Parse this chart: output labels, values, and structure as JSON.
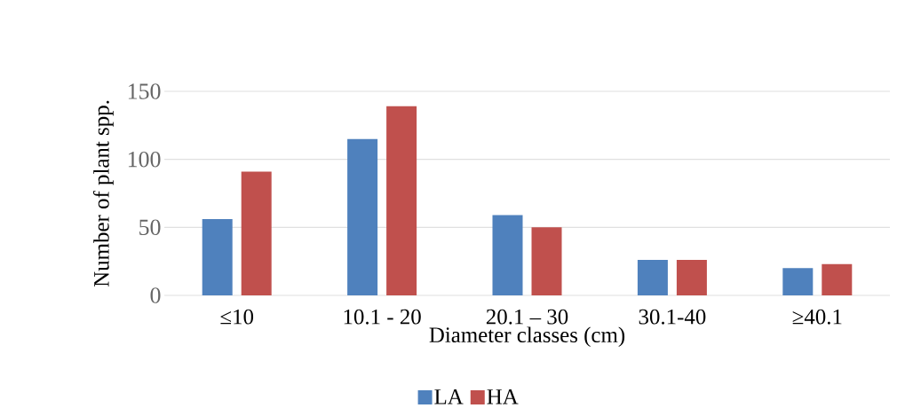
{
  "chart_data": {
    "type": "bar",
    "xlabel": "Diameter classes (cm)",
    "ylabel": "Number of plant spp.",
    "categories": [
      "≤10",
      "10.1 - 20",
      "20.1 – 30",
      "30.1-40",
      "≥40.1"
    ],
    "series": [
      {
        "name": "LA",
        "color": "#4f81bd",
        "values": [
          56,
          115,
          59,
          26,
          20
        ]
      },
      {
        "name": "HA",
        "color": "#c0504d",
        "values": [
          91,
          139,
          50,
          26,
          23
        ]
      }
    ],
    "ylim": [
      0,
      150
    ],
    "yticks": [
      0,
      50,
      100,
      150
    ],
    "grid": "y",
    "legend": "bottom"
  }
}
